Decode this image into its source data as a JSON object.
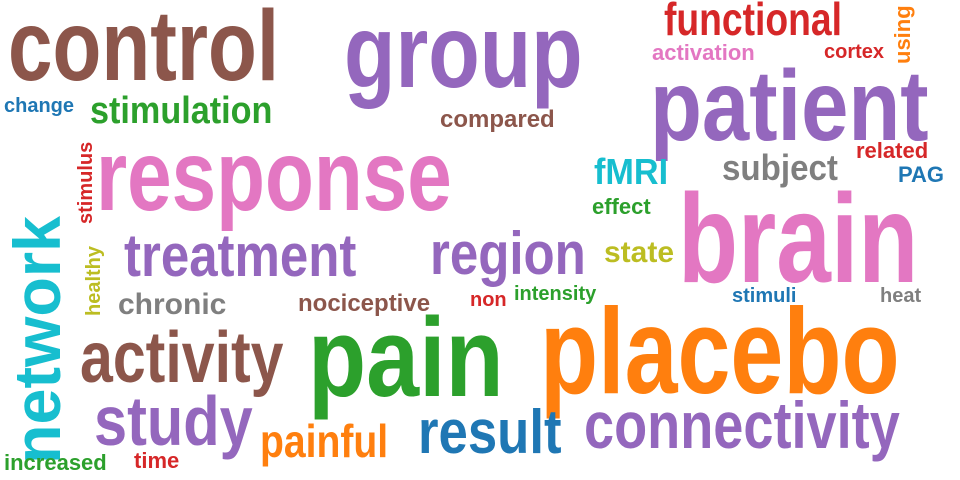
{
  "colors": {
    "brown": "#8c564b",
    "purple": "#9467bd",
    "pink": "#e377c2",
    "orange": "#ff7f0e",
    "green": "#2ca02c",
    "blue": "#1f77b4",
    "red": "#d62728",
    "gray": "#7f7f7f",
    "olive": "#bcbd22",
    "cyan": "#17becf"
  },
  "words": {
    "control": "control",
    "group": "group",
    "functional": "functional",
    "using": "using",
    "activation": "activation",
    "cortex": "cortex",
    "patient": "patient",
    "change": "change",
    "stimulation": "stimulation",
    "compared": "compared",
    "network": "network",
    "stimulus": "stimulus",
    "response": "response",
    "fmri": "fMRI",
    "effect": "effect",
    "subject": "subject",
    "related": "related",
    "pag": "PAG",
    "brain": "brain",
    "healthy": "healthy",
    "treatment": "treatment",
    "region": "region",
    "state": "state",
    "chronic": "chronic",
    "nociceptive": "nociceptive",
    "non": "non",
    "intensity": "intensity",
    "stimuli": "stimuli",
    "heat": "heat",
    "activity": "activity",
    "pain": "pain",
    "placebo": "placebo",
    "study": "study",
    "painful": "painful",
    "result": "result",
    "connectivity": "connectivity",
    "increased": "increased",
    "time": "time"
  }
}
